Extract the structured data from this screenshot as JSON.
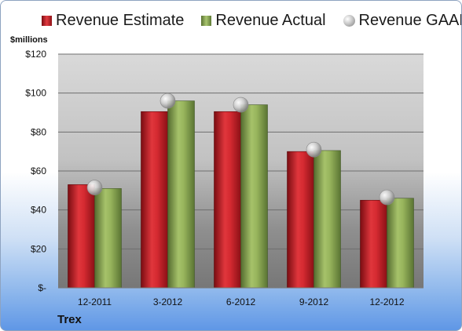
{
  "legend": {
    "estimate_label": "Revenue Estimate",
    "actual_label": "Revenue Actual",
    "gaap_label": "Revenue GAAP"
  },
  "unit_label": "$millions",
  "company": "Trex",
  "colors": {
    "estimate": "#c8232a",
    "actual": "#8aa84f",
    "gaap": "#b8b8b8"
  },
  "chart_data": {
    "type": "bar",
    "categories": [
      "12-2011",
      "3-2012",
      "6-2012",
      "9-2012",
      "12-2012"
    ],
    "series": [
      {
        "name": "Revenue Estimate",
        "values": [
          53,
          90.5,
          90.5,
          70,
          45
        ]
      },
      {
        "name": "Revenue Actual",
        "values": [
          51,
          96,
          94,
          70.5,
          46
        ]
      },
      {
        "name": "Revenue GAAP",
        "values": [
          51.5,
          96,
          94,
          71,
          46.5
        ],
        "marker": "circle"
      }
    ],
    "ylabel": "$millions",
    "ylim": [
      0,
      120
    ],
    "y_ticks": [
      {
        "value": 0,
        "label": "$-"
      },
      {
        "value": 20,
        "label": "$20"
      },
      {
        "value": 40,
        "label": "$40"
      },
      {
        "value": 60,
        "label": "$60"
      },
      {
        "value": 80,
        "label": "$80"
      },
      {
        "value": 100,
        "label": "$100"
      },
      {
        "value": 120,
        "label": "$120"
      }
    ],
    "grid": true,
    "legend_position": "top"
  }
}
